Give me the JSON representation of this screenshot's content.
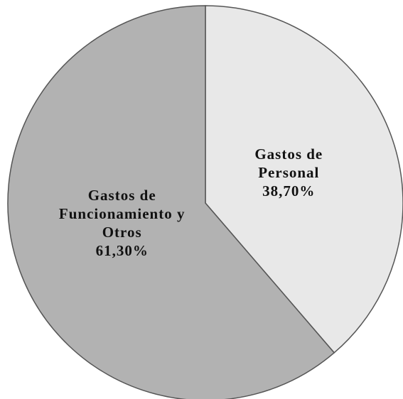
{
  "chart_data": {
    "type": "pie",
    "categories": [
      "Gastos de Personal",
      "Gastos de Funcionamiento y Otros"
    ],
    "values": [
      38.7,
      61.3
    ],
    "value_labels": [
      "38,70%",
      "61,30%"
    ],
    "colors": [
      "#e8e8e8",
      "#b2b2b2"
    ]
  }
}
